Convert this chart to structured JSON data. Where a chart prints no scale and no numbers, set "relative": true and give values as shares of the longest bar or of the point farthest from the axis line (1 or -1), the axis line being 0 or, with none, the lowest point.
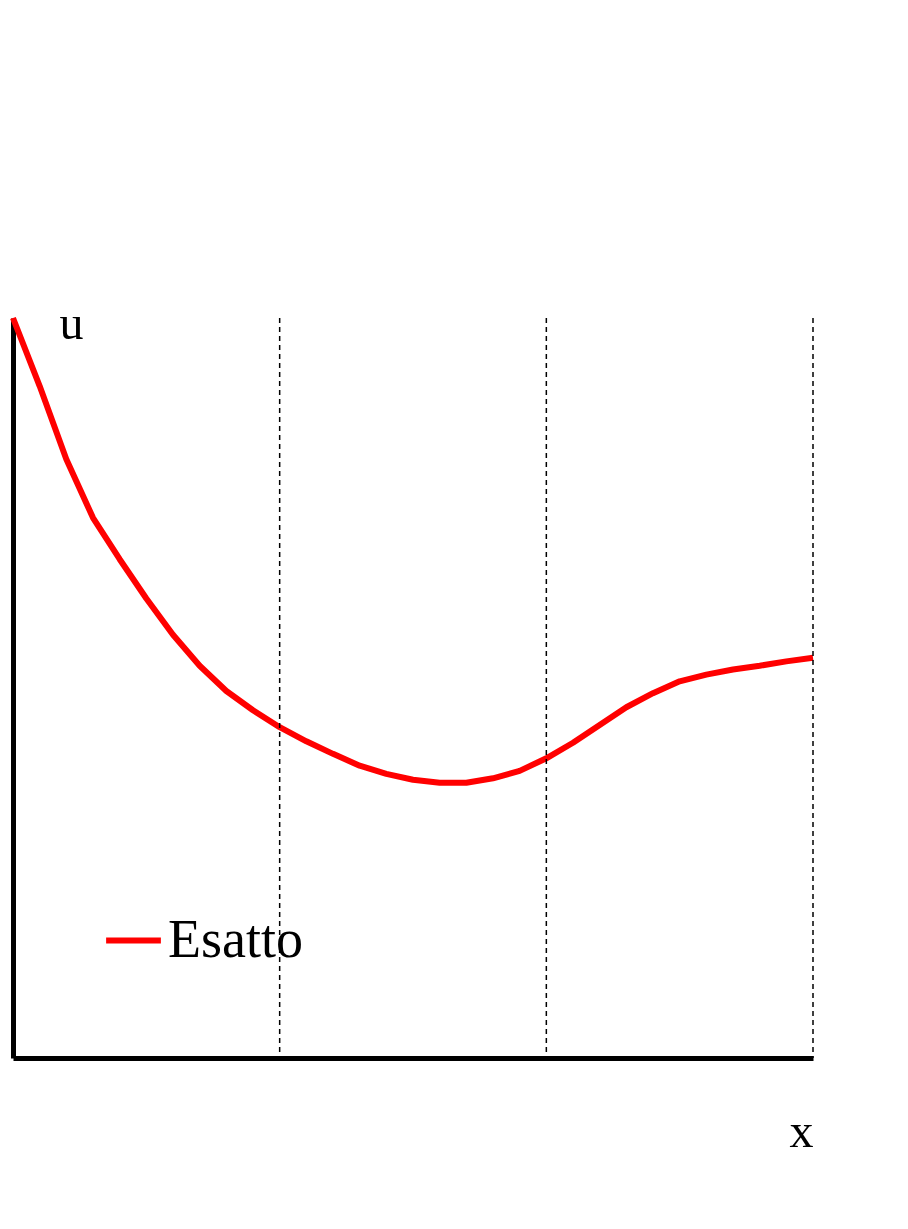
{
  "chart_data": {
    "type": "line",
    "relative": true,
    "xlabel": "x",
    "ylabel": "u",
    "categories": [
      null,
      null,
      null,
      null,
      null,
      null,
      null,
      null,
      null,
      null,
      null,
      null,
      null,
      null,
      null,
      null,
      null,
      null,
      null,
      null,
      null,
      null,
      null,
      null,
      null,
      null,
      null,
      null,
      null,
      null,
      null
    ],
    "series": [
      {
        "name": "Esatto",
        "color": "#ff0000",
        "values": [
          1.0,
          0.908,
          0.809,
          0.73,
          0.674,
          0.621,
          0.572,
          0.53,
          0.496,
          0.47,
          0.447,
          0.428,
          0.411,
          0.395,
          0.384,
          0.376,
          0.372,
          0.372,
          0.378,
          0.388,
          0.405,
          0.426,
          0.45,
          0.474,
          0.493,
          0.509,
          0.518,
          0.525,
          0.53,
          0.536,
          0.541
        ]
      }
    ],
    "legend": "bottom left",
    "grid": false,
    "marker": "none",
    "line_style": "solid"
  }
}
